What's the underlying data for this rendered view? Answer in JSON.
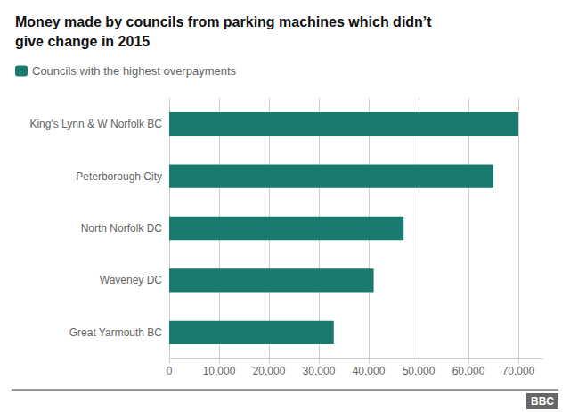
{
  "chart_data": {
    "type": "bar",
    "orientation": "horizontal",
    "title": "Money made by councils from parking machines which didn’t\ngive change in 2015",
    "categories": [
      "Great Yarmouth BC",
      "Waveney DC",
      "North Norfolk DC",
      "Peterborough City",
      "King's Lynn & W Norfolk BC"
    ],
    "series": [
      {
        "name": "Councils with the highest overpayments",
        "color": "#1a7a6e",
        "values": [
          33000,
          41000,
          47000,
          65000,
          70000
        ]
      }
    ],
    "xlim": [
      0,
      75000
    ],
    "xticks": [
      0,
      {
        "value": 10000,
        "label": "10,000"
      },
      {
        "value": 20000,
        "label": "20,000"
      },
      {
        "value": 30000,
        "label": "30,000"
      },
      {
        "value": 40000,
        "label": "40,000"
      },
      {
        "value": 50000,
        "label": "50,000"
      },
      {
        "value": 60000,
        "label": "60,000"
      },
      {
        "value": 70000,
        "label": "70,000"
      }
    ],
    "grid": true,
    "legend": "upper left",
    "annotations": [
      "BBC"
    ]
  }
}
